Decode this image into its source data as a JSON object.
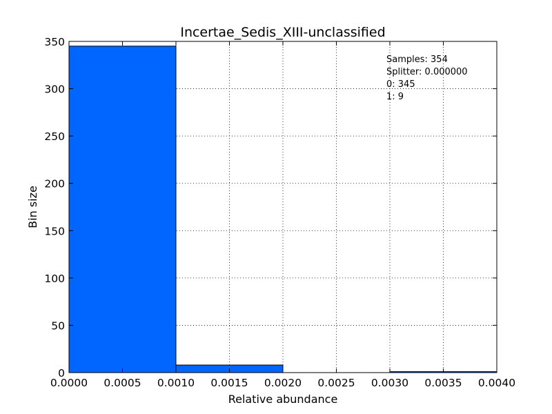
{
  "chart_data": {
    "type": "bar",
    "title": "Incertae_Sedis_XIII-unclassified",
    "xlabel": "Relative abundance",
    "ylabel": "Bin size",
    "xlim": [
      0.0,
      0.004
    ],
    "ylim": [
      0,
      350
    ],
    "xticks": [
      "0.0000",
      "0.0005",
      "0.0010",
      "0.0015",
      "0.0020",
      "0.0025",
      "0.0030",
      "0.0035",
      "0.0040"
    ],
    "yticks": [
      "0",
      "50",
      "100",
      "150",
      "200",
      "250",
      "300",
      "350"
    ],
    "bins": [
      {
        "start": 0.0,
        "end": 0.001,
        "value": 345
      },
      {
        "start": 0.001,
        "end": 0.002,
        "value": 8
      },
      {
        "start": 0.002,
        "end": 0.003,
        "value": 0
      },
      {
        "start": 0.003,
        "end": 0.004,
        "value": 1
      }
    ],
    "annotations": [
      "Samples: 354",
      "Splitter: 0.000000",
      "0: 345",
      "1: 9"
    ],
    "bar_color": "#0066ff",
    "grid": true
  }
}
